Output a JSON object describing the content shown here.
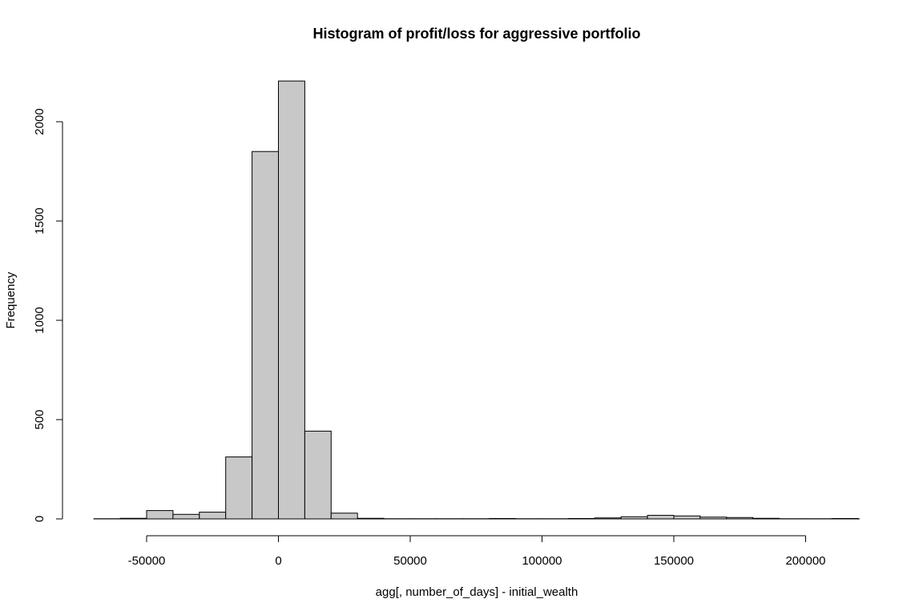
{
  "chart_data": {
    "type": "bar",
    "title": "Histogram of profit/loss for aggressive portfolio",
    "xlabel": "agg[, number_of_days] - initial_wealth",
    "ylabel": "Frequency",
    "bin_width": 10000,
    "bin_edges_start": -70000,
    "bins": [
      {
        "x0": -70000,
        "x1": -60000,
        "count": 1
      },
      {
        "x0": -60000,
        "x1": -50000,
        "count": 3
      },
      {
        "x0": -50000,
        "x1": -40000,
        "count": 42
      },
      {
        "x0": -40000,
        "x1": -30000,
        "count": 23
      },
      {
        "x0": -30000,
        "x1": -20000,
        "count": 34
      },
      {
        "x0": -20000,
        "x1": -10000,
        "count": 312
      },
      {
        "x0": -10000,
        "x1": 0,
        "count": 1850
      },
      {
        "x0": 0,
        "x1": 10000,
        "count": 2205
      },
      {
        "x0": 10000,
        "x1": 20000,
        "count": 442
      },
      {
        "x0": 20000,
        "x1": 30000,
        "count": 29
      },
      {
        "x0": 30000,
        "x1": 40000,
        "count": 3
      },
      {
        "x0": 40000,
        "x1": 50000,
        "count": 1
      },
      {
        "x0": 50000,
        "x1": 60000,
        "count": 1
      },
      {
        "x0": 60000,
        "x1": 70000,
        "count": 1
      },
      {
        "x0": 70000,
        "x1": 80000,
        "count": 1
      },
      {
        "x0": 80000,
        "x1": 90000,
        "count": 2
      },
      {
        "x0": 90000,
        "x1": 100000,
        "count": 1
      },
      {
        "x0": 100000,
        "x1": 110000,
        "count": 1
      },
      {
        "x0": 110000,
        "x1": 120000,
        "count": 2
      },
      {
        "x0": 120000,
        "x1": 130000,
        "count": 5
      },
      {
        "x0": 130000,
        "x1": 140000,
        "count": 11
      },
      {
        "x0": 140000,
        "x1": 150000,
        "count": 18
      },
      {
        "x0": 150000,
        "x1": 160000,
        "count": 15
      },
      {
        "x0": 160000,
        "x1": 170000,
        "count": 9
      },
      {
        "x0": 170000,
        "x1": 180000,
        "count": 7
      },
      {
        "x0": 180000,
        "x1": 190000,
        "count": 3
      },
      {
        "x0": 190000,
        "x1": 200000,
        "count": 1
      },
      {
        "x0": 200000,
        "x1": 210000,
        "count": 1
      },
      {
        "x0": 210000,
        "x1": 220000,
        "count": 2
      }
    ],
    "xlim": [
      -70000,
      220000
    ],
    "ylim": [
      0,
      2205
    ],
    "x_ticks": [
      -50000,
      0,
      50000,
      100000,
      150000,
      200000
    ],
    "x_tick_labels": [
      "-50000",
      "0",
      "50000",
      "100000",
      "150000",
      "200000"
    ],
    "y_ticks": [
      0,
      500,
      1000,
      1500,
      2000
    ],
    "y_tick_labels": [
      "0",
      "500",
      "1000",
      "1500",
      "2000"
    ],
    "bar_color": "#c8c8c8",
    "grid": false,
    "legend": "none"
  }
}
